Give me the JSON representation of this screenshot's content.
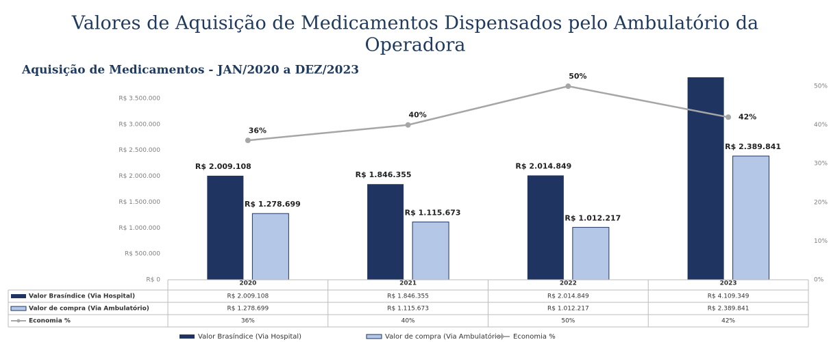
{
  "chart_data": {
    "type": "bar",
    "title": "Valores de Aquisição de Medicamentos Dispensados pelo Ambulatório da",
    "title_line2": "Operadora",
    "subtitle": "Aquisição de Medicamentos - JAN/2020 a DEZ/2023",
    "categories": [
      "2020",
      "2021",
      "2022",
      "2023"
    ],
    "series": [
      {
        "name": "Valor Brasíndice (Via Hospital)",
        "color": "#1f3461",
        "values": [
          2009108,
          1846355,
          2014849,
          4109349
        ],
        "value_labels": [
          "R$ 2.009.108",
          "R$ 1.846.355",
          "R$ 2.014.849",
          null
        ],
        "table_labels": [
          "R$ 2.009.108",
          "R$ 1.846.355",
          "R$ 2.014.849",
          "R$ 4.109.349"
        ]
      },
      {
        "name": "Valor de compra (Via Ambulatório)",
        "color": "#b4c7e7",
        "values": [
          1278699,
          1115673,
          1012217,
          2389841
        ],
        "value_labels": [
          "R$ 1.278.699",
          "R$ 1.115.673",
          "R$ 1.012.217",
          "R$ 2.389.841"
        ],
        "table_labels": [
          "R$ 1.278.699",
          "R$ 1.115.673",
          "R$ 1.012.217",
          "R$ 2.389.841"
        ]
      },
      {
        "name": "Economia %",
        "color": "#a6a6a6",
        "type": "line",
        "axis": "y2",
        "values": [
          36,
          40,
          50,
          42
        ],
        "value_labels": [
          "36%",
          "40%",
          "50%",
          "42%"
        ],
        "table_labels": [
          "36%",
          "40%",
          "50%",
          "42%"
        ]
      }
    ],
    "ylim": [
      0,
      3910000
    ],
    "yticks": [
      {
        "value": 0,
        "label": "R$ 0"
      },
      {
        "value": 500000,
        "label": "R$ 500.000"
      },
      {
        "value": 1000000,
        "label": "R$ 1.000.000"
      },
      {
        "value": 1500000,
        "label": "R$ 1.500.000"
      },
      {
        "value": 2000000,
        "label": "R$ 2.000.000"
      },
      {
        "value": 2500000,
        "label": "R$ 2.500.000"
      },
      {
        "value": 3000000,
        "label": "R$ 3.000.000"
      },
      {
        "value": 3500000,
        "label": "R$ 3.500.000"
      }
    ],
    "y2lim": [
      0,
      52.3
    ],
    "y2ticks": [
      {
        "value": 0,
        "label": "0%"
      },
      {
        "value": 10,
        "label": "10%"
      },
      {
        "value": 20,
        "label": "20%"
      },
      {
        "value": 30,
        "label": "30%"
      },
      {
        "value": 40,
        "label": "40%"
      },
      {
        "value": 50,
        "label": "50%"
      }
    ],
    "grid": false,
    "legend": "bottom"
  }
}
